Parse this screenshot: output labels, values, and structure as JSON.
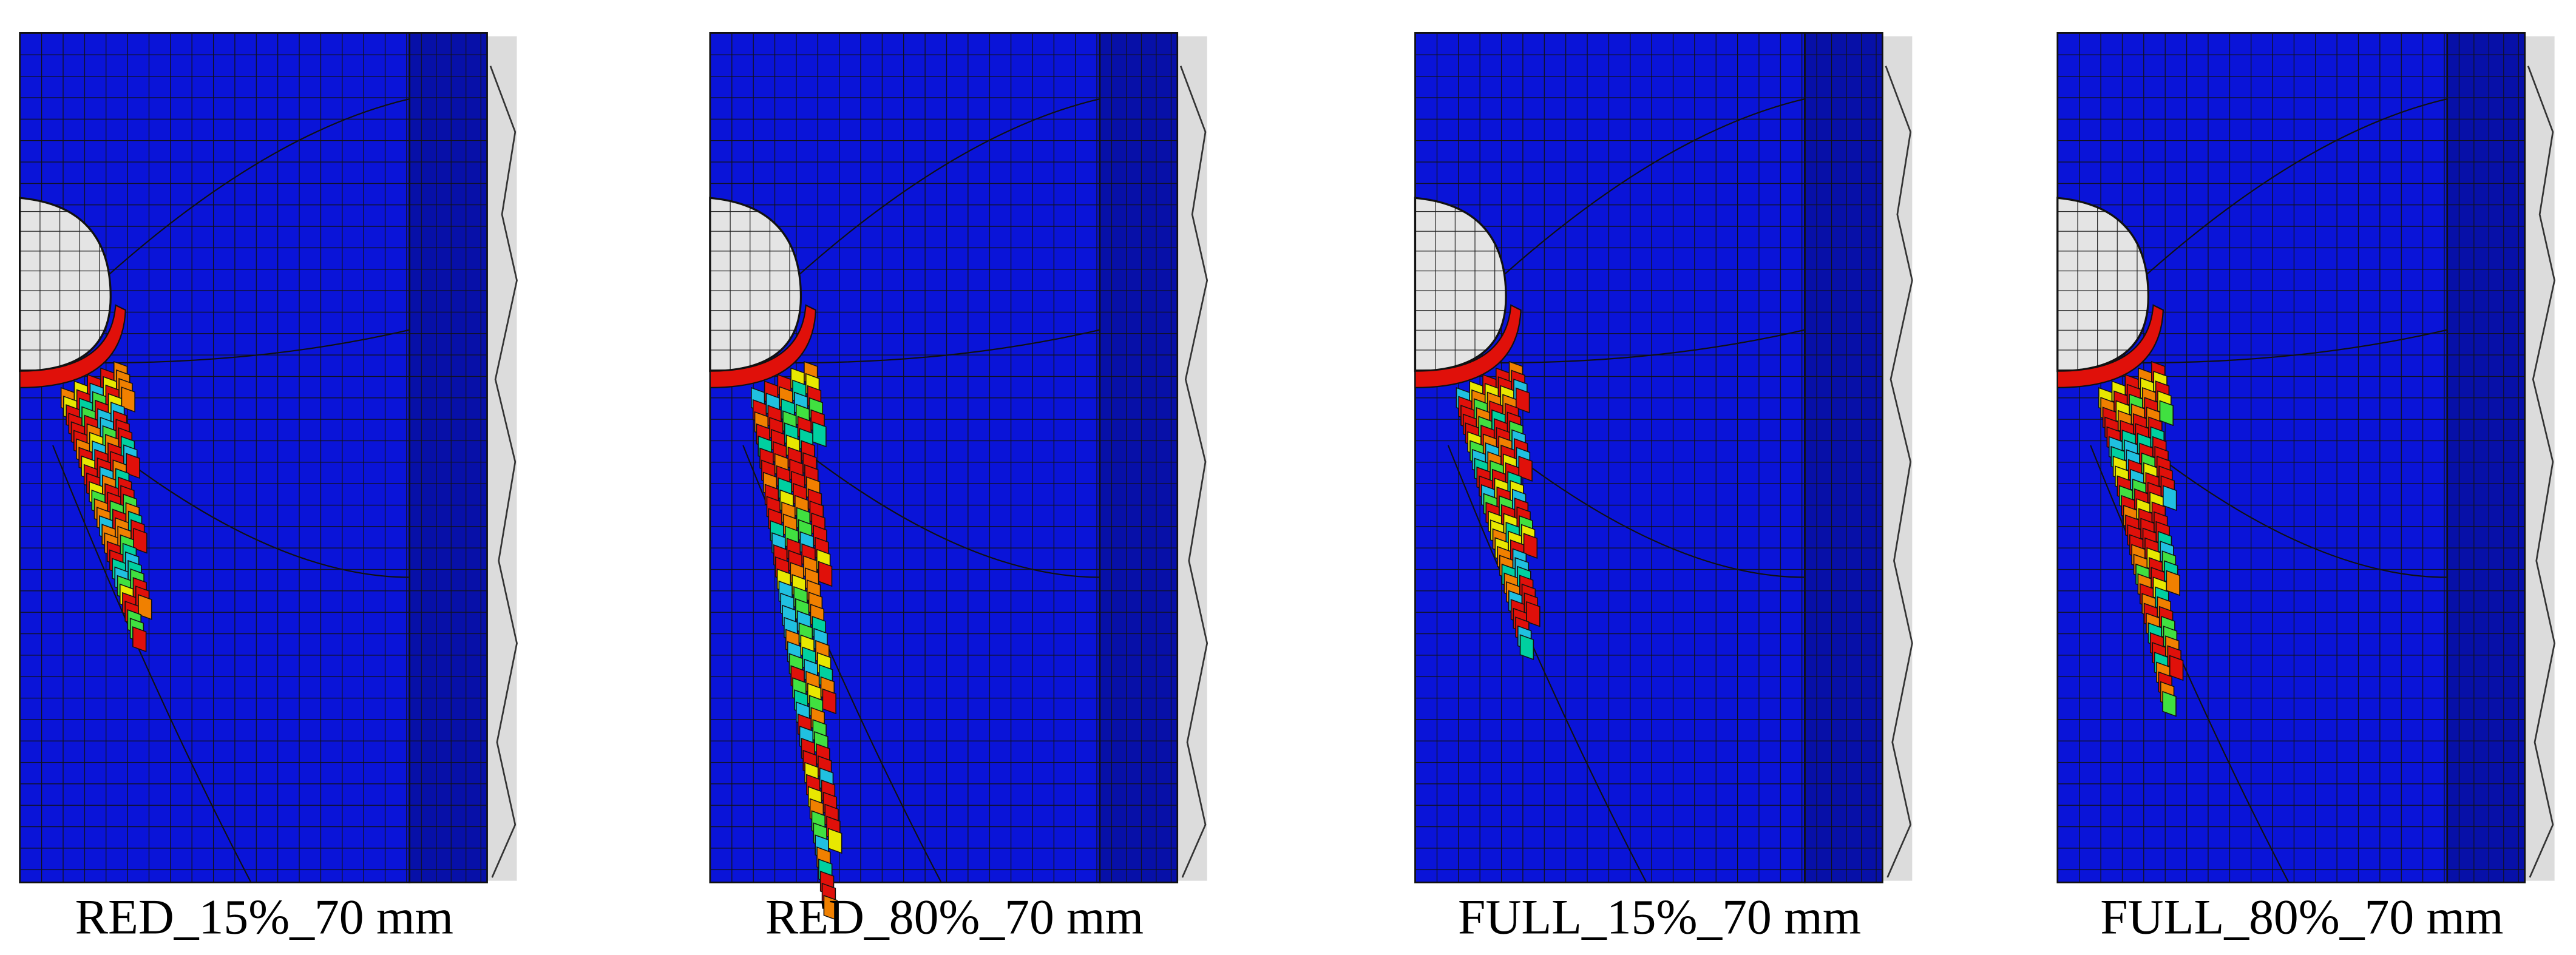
{
  "panels": [
    {
      "label": "RED_15%_70 mm"
    },
    {
      "label": "RED_80%_70 mm"
    },
    {
      "label": "FULL_15%_70 mm"
    },
    {
      "label": "FULL_80%_70 mm"
    }
  ]
}
